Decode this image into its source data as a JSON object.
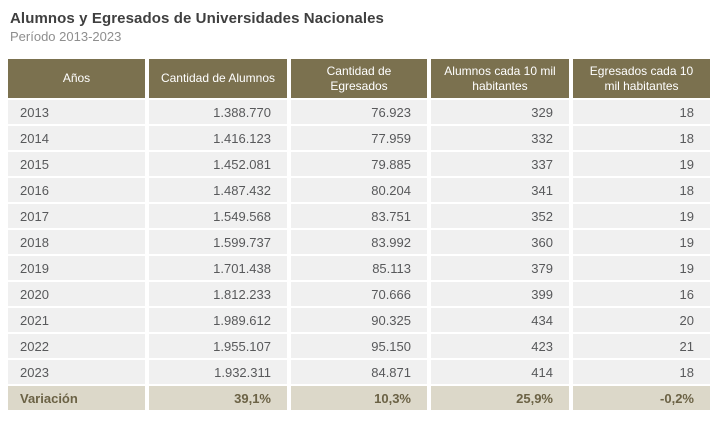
{
  "page": {
    "title": "Alumnos y Egresados de Universidades Nacionales",
    "subtitle": "Período 2013-2023"
  },
  "colors": {
    "header_bg": "#7b714f",
    "header_text": "#ffffff",
    "row_bg": "#f0f0f0",
    "row_separator": "#ffffff",
    "footer_bg": "#dcd8c9",
    "footer_text": "#6b6245",
    "cell_text": "#58595b",
    "title_text": "#3f3f3f",
    "subtitle_text": "#8e8e8e"
  },
  "chart_data": {
    "type": "table",
    "title": "Alumnos y Egresados de Universidades Nacionales",
    "subtitle": "Período 2013-2023",
    "columns": [
      "Años",
      "Cantidad de Alumnos",
      "Cantidad de Egresados",
      "Alumnos cada 10 mil habitantes",
      "Egresados cada 10 mil habitantes"
    ],
    "rows": [
      [
        "2013",
        "1.388.770",
        "76.923",
        "329",
        "18"
      ],
      [
        "2014",
        "1.416.123",
        "77.959",
        "332",
        "18"
      ],
      [
        "2015",
        "1.452.081",
        "79.885",
        "337",
        "19"
      ],
      [
        "2016",
        "1.487.432",
        "80.204",
        "341",
        "18"
      ],
      [
        "2017",
        "1.549.568",
        "83.751",
        "352",
        "19"
      ],
      [
        "2018",
        "1.599.737",
        "83.992",
        "360",
        "19"
      ],
      [
        "2019",
        "1.701.438",
        "85.113",
        "379",
        "19"
      ],
      [
        "2020",
        "1.812.233",
        "70.666",
        "399",
        "16"
      ],
      [
        "2021",
        "1.989.612",
        "90.325",
        "434",
        "20"
      ],
      [
        "2022",
        "1.955.107",
        "95.150",
        "423",
        "21"
      ],
      [
        "2023",
        "1.932.311",
        "84.871",
        "414",
        "18"
      ]
    ],
    "footer": [
      "Variación",
      "39,1%",
      "10,3%",
      "25,9%",
      "-0,2%"
    ]
  }
}
